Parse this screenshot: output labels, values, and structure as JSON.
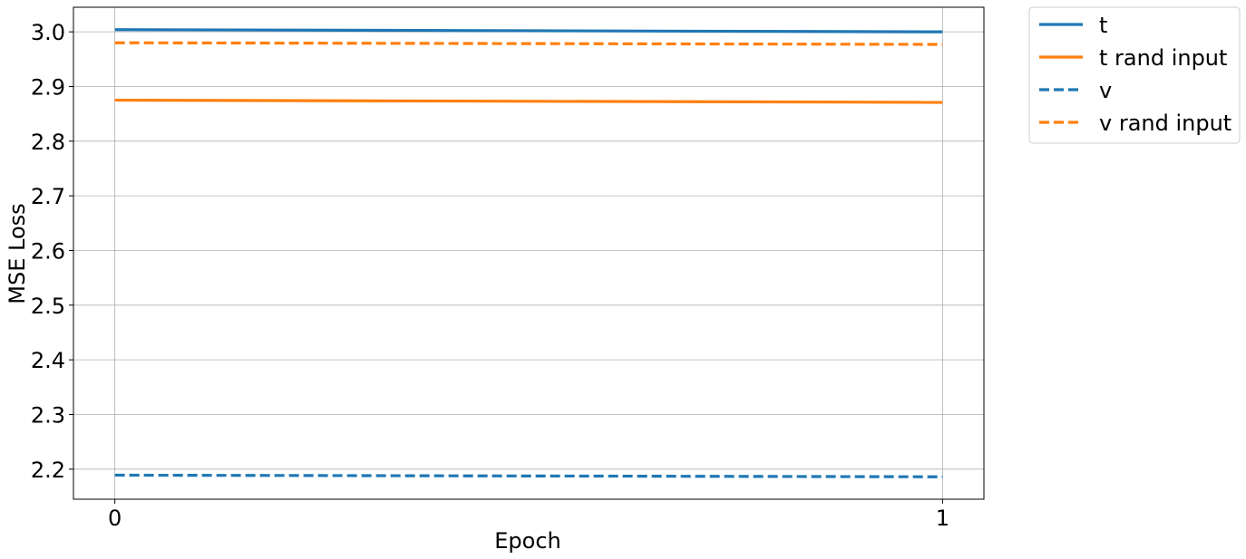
{
  "chart_data": {
    "type": "line",
    "title": "",
    "xlabel": "Epoch",
    "ylabel": "MSE Loss",
    "x": [
      0,
      1
    ],
    "x_ticks": [
      "0",
      "1"
    ],
    "y_ticks": [
      "2.2",
      "2.3",
      "2.4",
      "2.5",
      "2.6",
      "2.7",
      "2.8",
      "2.9",
      "3.0"
    ],
    "xlim": [
      -0.05,
      1.05
    ],
    "ylim": [
      2.145,
      3.045
    ],
    "grid": true,
    "legend_position": "outside top-right",
    "series": [
      {
        "name": "t",
        "values": [
          3.004,
          3.0
        ],
        "color": "#1f77b4",
        "style": "solid"
      },
      {
        "name": "t rand input",
        "values": [
          2.875,
          2.871
        ],
        "color": "#ff7f0e",
        "style": "solid"
      },
      {
        "name": "v",
        "values": [
          2.189,
          2.186
        ],
        "color": "#1f77b4",
        "style": "dashed"
      },
      {
        "name": "v rand input",
        "values": [
          2.98,
          2.977
        ],
        "color": "#ff7f0e",
        "style": "dashed"
      }
    ]
  }
}
